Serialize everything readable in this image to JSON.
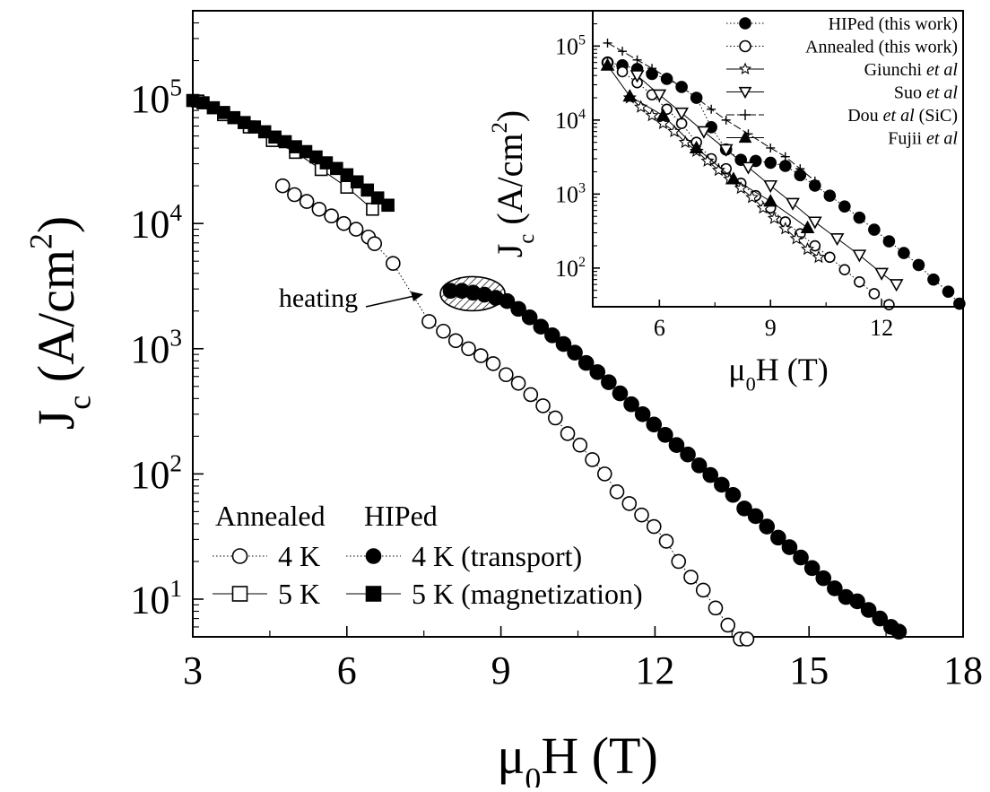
{
  "colors": {
    "ink": "#000000",
    "background": "#ffffff",
    "hatch": "#000000"
  },
  "chart_data": [
    {
      "type": "scatter",
      "role": "main",
      "xlabel": "μ0H (T)",
      "ylabel": "Jc (A/cm2)",
      "xlim": [
        3,
        18
      ],
      "ylim": [
        5,
        500000
      ],
      "y_scale": "log",
      "x_ticks": [
        3,
        6,
        9,
        12,
        15,
        18
      ],
      "y_ticks": [
        10,
        100,
        1000,
        10000,
        100000
      ],
      "grid": false,
      "legend_position": "bottom-left",
      "legend_groups": [
        "Annealed",
        "HIPed"
      ],
      "annotation": "heating",
      "series": [
        {
          "name": "4 K",
          "group": "Annealed",
          "marker": "open-circle",
          "line": "dotted",
          "x": [
            4.75,
            4.98,
            5.22,
            5.46,
            5.7,
            5.94,
            6.18,
            6.42,
            6.54,
            6.9,
            7.6,
            7.88,
            8.12,
            8.37,
            8.61,
            8.85,
            9.1,
            9.34,
            9.58,
            9.82,
            10.06,
            10.3,
            10.54,
            10.78,
            11.02,
            11.26,
            11.5,
            11.74,
            11.98,
            12.22,
            12.46,
            12.7,
            12.94,
            13.18,
            13.42,
            13.66,
            13.79
          ],
          "y": [
            20000,
            17000,
            15000,
            13000,
            11500,
            10000,
            9000,
            7800,
            6900,
            4800,
            1650,
            1380,
            1160,
            1000,
            880,
            760,
            620,
            530,
            430,
            350,
            280,
            210,
            170,
            130,
            100,
            72,
            58,
            47,
            38,
            29,
            20,
            15,
            11.8,
            8.5,
            6.2,
            4.8,
            4.8
          ]
        },
        {
          "name": "5 K",
          "group": "Annealed",
          "marker": "open-square",
          "line": "solid",
          "x": [
            3.1,
            3.6,
            4.1,
            4.55,
            5.0,
            5.5,
            6.0,
            6.5
          ],
          "y": [
            95000,
            74000,
            59000,
            46000,
            37000,
            27000,
            19500,
            13000
          ]
        },
        {
          "name": "4 K (transport)",
          "group": "HIPed",
          "marker": "filled-circle",
          "line": "dotted",
          "x": [
            8.02,
            8.24,
            8.46,
            8.68,
            8.9,
            9.12,
            9.34,
            9.56,
            9.78,
            10.0,
            10.22,
            10.44,
            10.66,
            10.88,
            11.1,
            11.32,
            11.54,
            11.76,
            11.98,
            12.2,
            12.42,
            12.64,
            12.86,
            13.08,
            13.3,
            13.52,
            13.74,
            13.96,
            14.18,
            14.4,
            14.62,
            14.84,
            15.06,
            15.28,
            15.5,
            15.72,
            15.94,
            16.16,
            16.38,
            16.6,
            16.75
          ],
          "y": [
            2900,
            2900,
            2800,
            2700,
            2550,
            2400,
            2080,
            1780,
            1500,
            1280,
            1090,
            930,
            770,
            650,
            540,
            440,
            360,
            300,
            248,
            205,
            170,
            143,
            117,
            98,
            82,
            68,
            53,
            46,
            38,
            31,
            26,
            21.5,
            17.7,
            14.7,
            12.2,
            10.4,
            9.6,
            8.2,
            7.0,
            6.0,
            5.5
          ]
        },
        {
          "name": "5 K (magnetization)",
          "group": "HIPed",
          "marker": "filled-square",
          "line": "solid",
          "x": [
            3.0,
            3.2,
            3.4,
            3.6,
            3.8,
            4.0,
            4.2,
            4.4,
            4.6,
            4.8,
            5.0,
            5.2,
            5.4,
            5.6,
            5.8,
            6.0,
            6.2,
            6.4,
            6.6,
            6.8
          ],
          "y": [
            96000,
            92000,
            84000,
            77000,
            70000,
            64000,
            59000,
            54000,
            49000,
            45000,
            41000,
            37500,
            34000,
            30500,
            27500,
            24500,
            21500,
            18500,
            16000,
            14000
          ]
        }
      ]
    },
    {
      "type": "scatter",
      "role": "inset",
      "xlabel": "μ0H (T)",
      "ylabel": "Jc (A/cm2)",
      "xlim": [
        4.2,
        14.2
      ],
      "ylim": [
        30,
        300000
      ],
      "y_scale": "log",
      "x_ticks": [
        6,
        9,
        12
      ],
      "y_ticks": [
        100,
        1000,
        10000,
        100000
      ],
      "grid": false,
      "legend_position": "top-right",
      "series": [
        {
          "name": "HIPed (this work)",
          "marker": "filled-circle",
          "line": "dotted",
          "x": [
            4.6,
            5.0,
            5.4,
            5.8,
            6.2,
            6.6,
            7.0,
            7.4,
            7.8,
            8.2,
            8.6,
            9.0,
            9.4,
            9.8,
            10.2,
            10.6,
            11.0,
            11.4,
            11.8,
            12.2,
            12.6,
            13.0,
            13.4,
            13.8,
            14.1
          ],
          "y": [
            60000,
            55000,
            49000,
            42000,
            36000,
            28000,
            20000,
            8000,
            4000,
            2900,
            2800,
            2650,
            2400,
            1800,
            1300,
            950,
            680,
            480,
            330,
            230,
            160,
            110,
            70,
            48,
            33
          ]
        },
        {
          "name": "Annealed (this work)",
          "marker": "open-circle",
          "line": "dotted",
          "x": [
            4.6,
            5.0,
            5.4,
            5.8,
            6.2,
            6.6,
            7.0,
            7.4,
            7.8,
            8.2,
            8.6,
            9.0,
            9.4,
            9.8,
            10.2,
            10.6,
            11.0,
            11.4,
            11.8,
            12.2
          ],
          "y": [
            60000,
            45000,
            32000,
            22000,
            14000,
            9000,
            5000,
            3000,
            2200,
            1400,
            950,
            650,
            420,
            290,
            200,
            140,
            95,
            65,
            45,
            32
          ]
        },
        {
          "name": "Giunchi et al",
          "marker": "open-star",
          "line": "solid",
          "x": [
            5.2,
            5.5,
            5.8,
            6.1,
            6.4,
            6.7,
            7.0,
            7.3,
            7.6,
            7.9,
            8.2,
            8.5,
            8.8,
            9.1,
            9.4,
            9.7,
            10.0,
            10.3
          ],
          "y": [
            20000,
            15000,
            11500,
            9000,
            7000,
            5000,
            3800,
            2800,
            2100,
            1600,
            1200,
            900,
            650,
            470,
            340,
            250,
            180,
            140
          ]
        },
        {
          "name": "Suo et al",
          "marker": "open-triangle-down",
          "line": "solid",
          "x": [
            5.4,
            6.0,
            6.6,
            7.2,
            7.8,
            8.4,
            9.0,
            9.6,
            10.2,
            10.8,
            11.4,
            12.0,
            12.4
          ],
          "y": [
            40000,
            22000,
            12500,
            7000,
            4000,
            2300,
            1300,
            750,
            420,
            250,
            150,
            85,
            60
          ]
        },
        {
          "name": "Dou et al (SiC)",
          "marker": "plus",
          "line": "dashed",
          "x": [
            4.6,
            5.0,
            5.4,
            5.8,
            6.2,
            6.6,
            7.0,
            7.4,
            7.8,
            8.4,
            9.0,
            9.4,
            9.8,
            10.2
          ],
          "y": [
            110000,
            85000,
            65000,
            50000,
            38000,
            28000,
            20000,
            14000,
            10000,
            6500,
            4200,
            3200,
            2200,
            1500
          ]
        },
        {
          "name": "Fujii et al",
          "marker": "filled-triangle-up",
          "line": "solid",
          "x": [
            4.6,
            5.2,
            6.1,
            7.0,
            8.0,
            9.0,
            10.0
          ],
          "y": [
            55000,
            21000,
            11500,
            4200,
            1600,
            800,
            350
          ]
        }
      ]
    }
  ]
}
